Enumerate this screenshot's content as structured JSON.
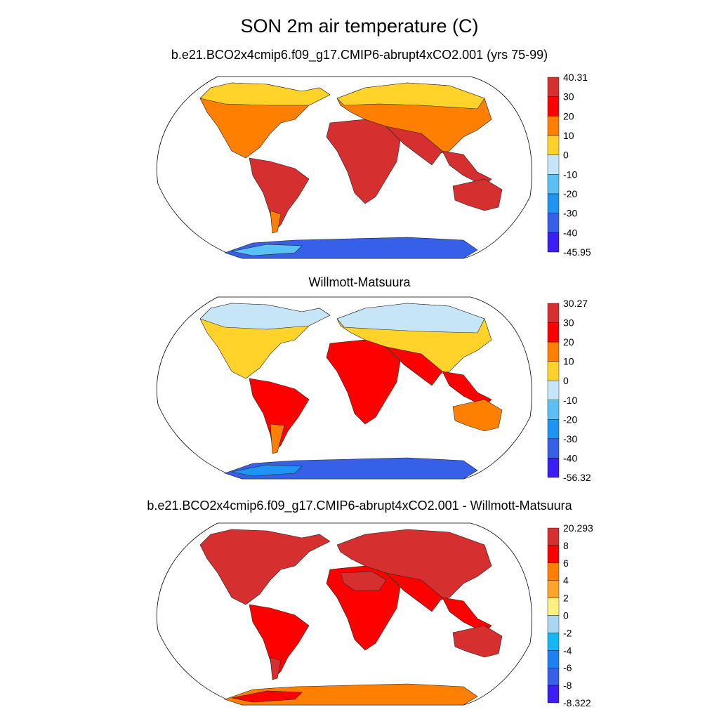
{
  "figure": {
    "title": "SON 2m air temperature (C)"
  },
  "panels": [
    {
      "title": "b.e21.BCO2x4cmip6.f09_g17.CMIP6-abrupt4xCO2.001 (yrs 75-99)",
      "colorbar": {
        "labels": [
          "40.31",
          "30",
          "20",
          "10",
          "0",
          "-10",
          "-20",
          "-30",
          "-40",
          "-45.95"
        ],
        "colors": [
          "#d62f2f",
          "#ff0000",
          "#ff8000",
          "#ffd32a",
          "#c6e6f7",
          "#5bc1f5",
          "#1e95f5",
          "#3660e8",
          "#3a1ef5"
        ]
      },
      "land": {
        "north": "#ffd32a",
        "mid": "#ff8000",
        "trop": "#d62f2f",
        "south_tip": "#ff8000",
        "antarctica": "#3660e8",
        "antarctica_edge": "#5bc1f5"
      }
    },
    {
      "title": "Willmott-Matsuura",
      "colorbar": {
        "labels": [
          "30.27",
          "30",
          "20",
          "10",
          "0",
          "-10",
          "-20",
          "-30",
          "-40",
          "-56.32"
        ],
        "colors": [
          "#d62f2f",
          "#ff0000",
          "#ff8000",
          "#ffd32a",
          "#c6e6f7",
          "#5bc1f5",
          "#1e95f5",
          "#3660e8",
          "#3a1ef5"
        ]
      },
      "land": {
        "north": "#c6e6f7",
        "mid": "#ffd32a",
        "trop": "#ff0000",
        "south_tip": "#ff8000",
        "antarctica": "#3660e8",
        "antarctica_edge": "#1e95f5"
      }
    },
    {
      "title": "b.e21.BCO2x4cmip6.f09_g17.CMIP6-abrupt4xCO2.001 - Willmott-Matsuura",
      "colorbar": {
        "labels": [
          "20.293",
          "8",
          "6",
          "4",
          "2",
          "0",
          "-2",
          "-4",
          "-6",
          "-8",
          "-8.322"
        ],
        "colors": [
          "#d62f2f",
          "#ff0000",
          "#ff8000",
          "#ffa62a",
          "#fff080",
          "#a9d6f0",
          "#13b8f5",
          "#1e80f5",
          "#3660e8",
          "#3a1ef5"
        ]
      },
      "land": {
        "north": "#d62f2f",
        "mid": "#d62f2f",
        "trop": "#ff0000",
        "south_tip": "#d62f2f",
        "antarctica": "#ff8000",
        "antarctica_edge": "#ff0000"
      }
    }
  ]
}
